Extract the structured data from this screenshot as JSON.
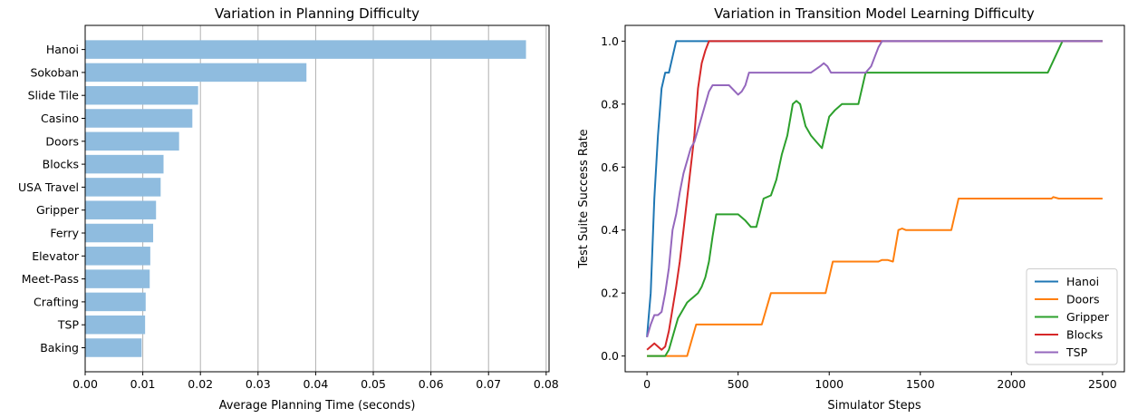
{
  "chart_data": [
    {
      "type": "bar",
      "orientation": "horizontal",
      "title": "Variation in Planning Difficulty",
      "xlabel": "Average Planning Time (seconds)",
      "ylabel": "",
      "xlim": [
        0,
        0.0805
      ],
      "xticks": [
        "0.00",
        "0.01",
        "0.02",
        "0.03",
        "0.04",
        "0.05",
        "0.06",
        "0.07",
        "0.08"
      ],
      "xtick_values": [
        0,
        0.01,
        0.02,
        0.03,
        0.04,
        0.05,
        0.06,
        0.07,
        0.08
      ],
      "grid": "vertical",
      "bar_color": "#8fbcdf",
      "categories": [
        "Hanoi",
        "Sokoban",
        "Slide Tile",
        "Casino",
        "Doors",
        "Blocks",
        "USA Travel",
        "Gripper",
        "Ferry",
        "Elevator",
        "Meet-Pass",
        "Crafting",
        "TSP",
        "Baking"
      ],
      "values": [
        0.0765,
        0.0384,
        0.0196,
        0.0186,
        0.0163,
        0.0136,
        0.0131,
        0.0123,
        0.0118,
        0.0113,
        0.0112,
        0.0105,
        0.0104,
        0.0098
      ]
    },
    {
      "type": "line",
      "title": "Variation in Transition Model Learning Difficulty",
      "xlabel": "Simulator Steps",
      "ylabel": "Test Suite Success Rate",
      "xlim": [
        -120,
        2620
      ],
      "ylim": [
        -0.05,
        1.05
      ],
      "xticks": [
        "0",
        "500",
        "1000",
        "1500",
        "2000",
        "2500"
      ],
      "xtick_values": [
        0,
        500,
        1000,
        1500,
        2000,
        2500
      ],
      "yticks": [
        "0.0",
        "0.2",
        "0.4",
        "0.6",
        "0.8",
        "1.0"
      ],
      "ytick_values": [
        0,
        0.2,
        0.4,
        0.6,
        0.8,
        1.0
      ],
      "legend_position": "bottom-right",
      "series": [
        {
          "name": "Hanoi",
          "color": "#1f77b4",
          "x": [
            0,
            20,
            40,
            60,
            80,
            100,
            120,
            140,
            160,
            180,
            200,
            2500
          ],
          "y": [
            0.06,
            0.2,
            0.5,
            0.7,
            0.85,
            0.9,
            0.9,
            0.95,
            1.0,
            1.0,
            1.0,
            1.0
          ]
        },
        {
          "name": "Doors",
          "color": "#ff7f0e",
          "x": [
            0,
            220,
            270,
            630,
            680,
            980,
            1020,
            1270,
            1290,
            1320,
            1350,
            1380,
            1400,
            1420,
            1670,
            1710,
            2220,
            2230,
            2260,
            2500
          ],
          "y": [
            0.0,
            0.0,
            0.1,
            0.1,
            0.2,
            0.2,
            0.3,
            0.3,
            0.305,
            0.305,
            0.3,
            0.4,
            0.405,
            0.4,
            0.4,
            0.5,
            0.5,
            0.505,
            0.5,
            0.5
          ],
          "first_x_point": 0
        },
        {
          "name": "Gripper",
          "color": "#2ca02c",
          "x": [
            0,
            100,
            120,
            150,
            170,
            200,
            220,
            240,
            260,
            280,
            300,
            320,
            340,
            360,
            380,
            400,
            450,
            500,
            540,
            570,
            600,
            640,
            680,
            710,
            740,
            770,
            800,
            820,
            840,
            870,
            900,
            930,
            960,
            1000,
            1030,
            1070,
            1100,
            1130,
            1160,
            1200,
            1240,
            1280,
            1320,
            1360,
            1400,
            2200,
            2240,
            2280,
            2500
          ],
          "y": [
            0.0,
            0.0,
            0.02,
            0.08,
            0.12,
            0.15,
            0.17,
            0.18,
            0.19,
            0.2,
            0.22,
            0.25,
            0.3,
            0.38,
            0.45,
            0.45,
            0.45,
            0.45,
            0.43,
            0.41,
            0.41,
            0.5,
            0.51,
            0.56,
            0.64,
            0.7,
            0.8,
            0.81,
            0.8,
            0.73,
            0.7,
            0.68,
            0.66,
            0.76,
            0.78,
            0.8,
            0.8,
            0.8,
            0.8,
            0.9,
            0.9,
            0.9,
            0.9,
            0.9,
            0.9,
            0.9,
            0.95,
            1.0,
            1.0
          ],
          "first_x_point": 0
        },
        {
          "name": "Blocks",
          "color": "#d62728",
          "x": [
            0,
            20,
            40,
            60,
            80,
            100,
            120,
            140,
            160,
            180,
            200,
            220,
            240,
            260,
            280,
            300,
            320,
            340,
            2500
          ],
          "y": [
            0.02,
            0.03,
            0.04,
            0.03,
            0.02,
            0.03,
            0.08,
            0.15,
            0.22,
            0.3,
            0.4,
            0.5,
            0.6,
            0.7,
            0.85,
            0.93,
            0.97,
            1.0,
            1.0
          ]
        },
        {
          "name": "TSP",
          "color": "#9467bd",
          "x": [
            0,
            20,
            40,
            60,
            80,
            100,
            120,
            140,
            160,
            180,
            200,
            220,
            240,
            260,
            280,
            300,
            320,
            340,
            360,
            380,
            400,
            450,
            500,
            520,
            540,
            560,
            600,
            650,
            700,
            750,
            800,
            850,
            900,
            950,
            970,
            990,
            1010,
            1050,
            1100,
            1150,
            1200,
            1230,
            1250,
            1270,
            1290,
            1310,
            2500
          ],
          "y": [
            0.06,
            0.1,
            0.13,
            0.13,
            0.14,
            0.2,
            0.28,
            0.4,
            0.45,
            0.52,
            0.58,
            0.62,
            0.66,
            0.68,
            0.72,
            0.76,
            0.8,
            0.84,
            0.86,
            0.86,
            0.86,
            0.86,
            0.83,
            0.84,
            0.86,
            0.9,
            0.9,
            0.9,
            0.9,
            0.9,
            0.9,
            0.9,
            0.9,
            0.92,
            0.93,
            0.92,
            0.9,
            0.9,
            0.9,
            0.9,
            0.9,
            0.92,
            0.95,
            0.98,
            1.0,
            1.0,
            1.0
          ]
        }
      ]
    }
  ]
}
